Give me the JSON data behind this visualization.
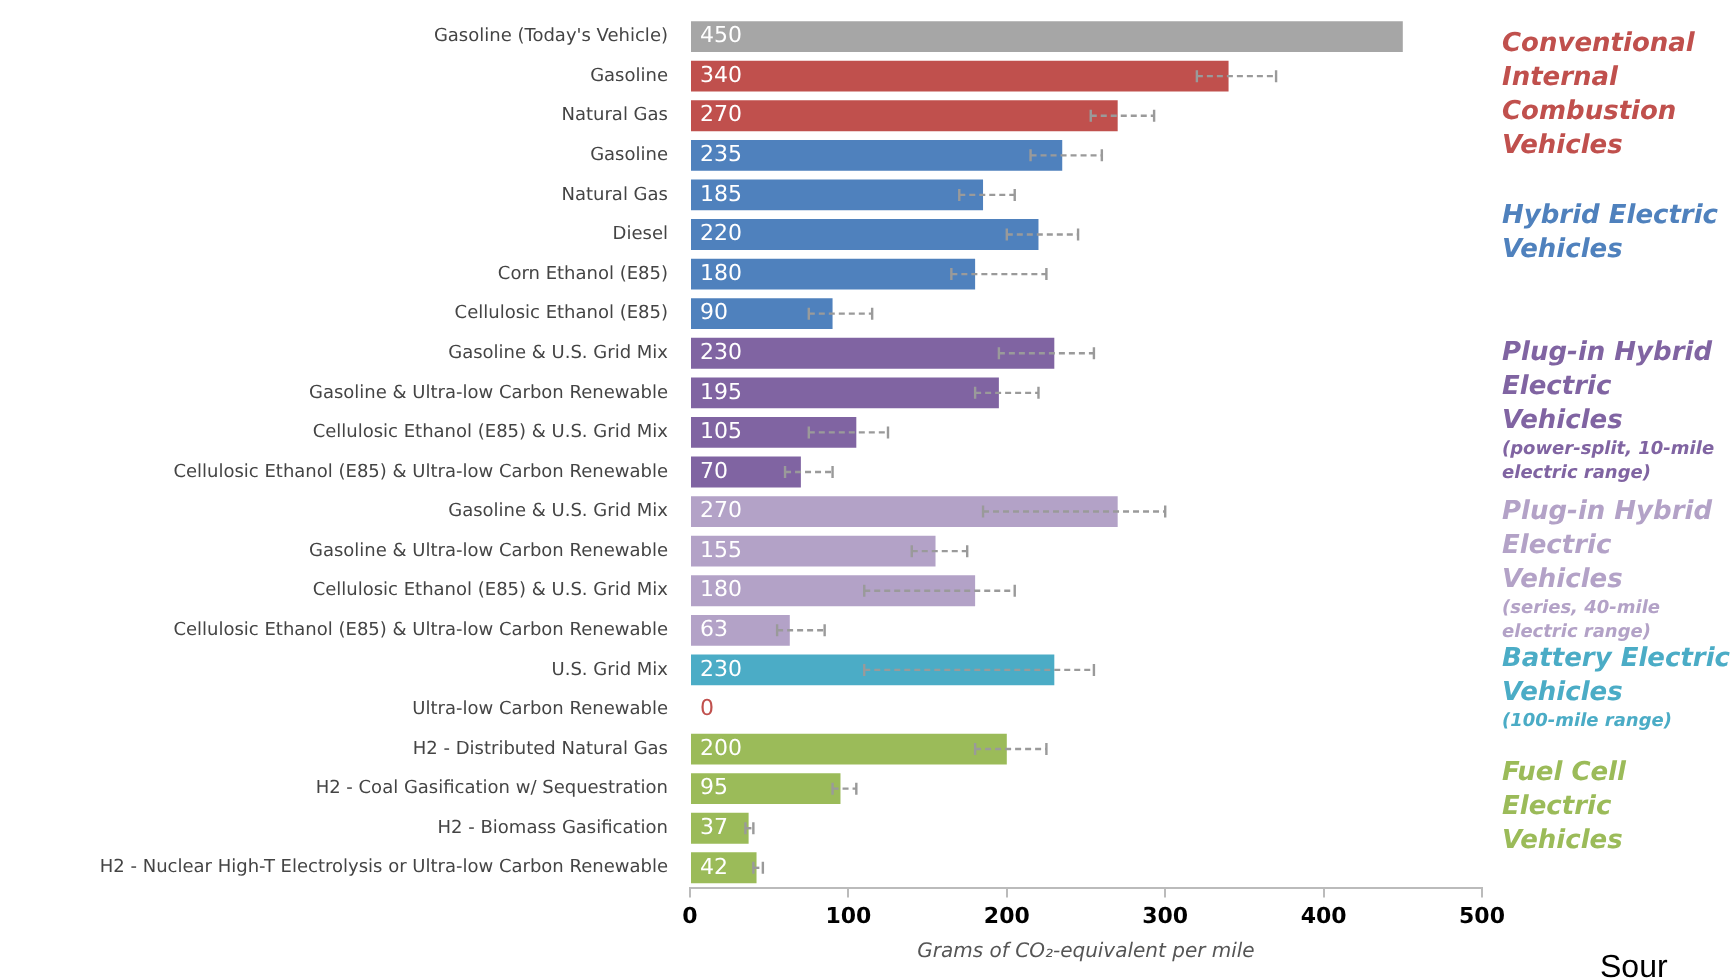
{
  "chart_data": {
    "type": "bar",
    "orientation": "horizontal",
    "stacked": true,
    "xlabel": "Grams of CO₂-equivalent per mile",
    "categories": [
      "Gasoline (Today's Vehicle)",
      "Gasoline",
      "Natural Gas",
      "Gasoline",
      "Natural Gas",
      "Diesel",
      "Corn Ethanol (E85)",
      "Cellulosic Ethanol (E85)",
      "Gasoline & U.S. Grid Mix",
      "Gasoline & Ultra-low Carbon Renewable",
      "Cellulosic Ethanol (E85) & U.S. Grid Mix",
      "Cellulosic Ethanol (E85) & Ultra-low Carbon Renewable",
      "Gasoline & U.S. Grid Mix",
      "Gasoline & Ultra-low Carbon Renewable",
      "Cellulosic Ethanol (E85) & U.S. Grid Mix",
      "Cellulosic Ethanol (E85) & Ultra-low Carbon Renewable",
      "U.S. Grid Mix",
      "Ultra-low Carbon Renewable",
      "H2 - Distributed Natural Gas",
      "H2 - Coal Gasification w/ Sequestration",
      "H2 - Biomass Gasification",
      "H2 - Nuclear High-T Electrolysis or Ultra-low Carbon Renewable"
    ],
    "series": [
      {
        "color": "#a6a6a6",
        "values": [
          450,
          null,
          null,
          null,
          null,
          null,
          null,
          null,
          null,
          null,
          null,
          null,
          null,
          null,
          null,
          null,
          null,
          null,
          null,
          null,
          null,
          null
        ]
      },
      {
        "name": "Conventional Internal Combustion Vehicles",
        "color": "#c0504d",
        "values": [
          null,
          340,
          270,
          null,
          null,
          null,
          null,
          null,
          null,
          null,
          null,
          null,
          null,
          null,
          null,
          null,
          null,
          null,
          null,
          null,
          null,
          null
        ],
        "errors": [
          null,
          [
            320,
            370
          ],
          [
            253,
            293
          ],
          null,
          null,
          null,
          null,
          null,
          null,
          null,
          null,
          null,
          null,
          null,
          null,
          null,
          null,
          null,
          null,
          null,
          null,
          null
        ]
      },
      {
        "name": "Hybrid Electric Vehicles",
        "color": "#4f81bd",
        "values": [
          null,
          null,
          null,
          235,
          185,
          220,
          180,
          90,
          null,
          null,
          null,
          null,
          null,
          null,
          null,
          null,
          null,
          null,
          null,
          null,
          null,
          null
        ],
        "errors": [
          null,
          null,
          null,
          [
            215,
            260
          ],
          [
            170,
            205
          ],
          [
            200,
            245
          ],
          [
            165,
            225
          ],
          [
            75,
            115
          ],
          null,
          null,
          null,
          null,
          null,
          null,
          null,
          null,
          null,
          null,
          null,
          null,
          null,
          null
        ]
      },
      {
        "name": "Plug-in Hybrid Electric Vehicles (power-split, 10-mile electric range)",
        "color": "#8064a2",
        "values": [
          null,
          null,
          null,
          null,
          null,
          null,
          null,
          null,
          230,
          195,
          105,
          70,
          null,
          null,
          null,
          null,
          null,
          null,
          null,
          null,
          null,
          null
        ],
        "errors": [
          null,
          null,
          null,
          null,
          null,
          null,
          null,
          null,
          [
            195,
            255
          ],
          [
            180,
            220
          ],
          [
            75,
            125
          ],
          [
            60,
            90
          ],
          null,
          null,
          null,
          null,
          null,
          null,
          null,
          null,
          null,
          null
        ]
      },
      {
        "name": "Plug-in Hybrid Electric Vehicles (series, 40-mile electric range)",
        "color": "#b3a2c7",
        "values": [
          null,
          null,
          null,
          null,
          null,
          null,
          null,
          null,
          null,
          null,
          null,
          null,
          270,
          155,
          180,
          63,
          null,
          null,
          null,
          null,
          null,
          null
        ],
        "errors": [
          null,
          null,
          null,
          null,
          null,
          null,
          null,
          null,
          null,
          null,
          null,
          null,
          [
            185,
            300
          ],
          [
            140,
            175
          ],
          [
            110,
            205
          ],
          [
            55,
            85
          ],
          null,
          null,
          null,
          null,
          null,
          null
        ]
      },
      {
        "name": "Battery Electric Vehicles (100-mile range)",
        "color": "#4bacc6",
        "values": [
          null,
          null,
          null,
          null,
          null,
          null,
          null,
          null,
          null,
          null,
          null,
          null,
          null,
          null,
          null,
          null,
          230,
          0,
          null,
          null,
          null,
          null
        ],
        "errors": [
          null,
          null,
          null,
          null,
          null,
          null,
          null,
          null,
          null,
          null,
          null,
          null,
          null,
          null,
          null,
          null,
          [
            110,
            255
          ],
          null,
          null,
          null,
          null,
          null
        ]
      },
      {
        "name": "Fuel Cell Electric Vehicles",
        "color": "#9bbb59",
        "values": [
          null,
          null,
          null,
          null,
          null,
          null,
          null,
          null,
          null,
          null,
          null,
          null,
          null,
          null,
          null,
          null,
          null,
          null,
          200,
          95,
          37,
          42
        ],
        "errors": [
          null,
          null,
          null,
          null,
          null,
          null,
          null,
          null,
          null,
          null,
          null,
          null,
          null,
          null,
          null,
          null,
          null,
          null,
          [
            180,
            225
          ],
          [
            90,
            105
          ],
          [
            35,
            40
          ],
          [
            40,
            46
          ]
        ]
      }
    ],
    "xlim": [
      0,
      500
    ],
    "xticks": [
      0,
      100,
      200,
      300,
      400,
      500
    ],
    "data_labels": true,
    "annotations": [
      "Sour"
    ]
  }
}
